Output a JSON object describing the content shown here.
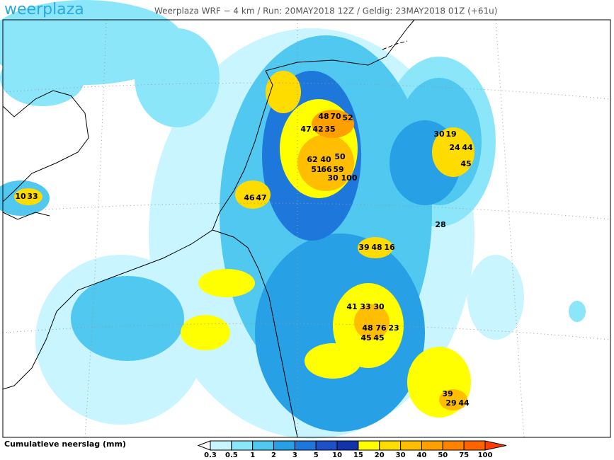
{
  "logo": "weerplaza",
  "header": "Weerplaza WRF − 4 km / Run: 20MAY2018 12Z / Geldig: 23MAY2018 01Z (+61u)",
  "legend": {
    "title": "Cumulatieve neerslag (mm)",
    "ticks": [
      0.3,
      0.5,
      1,
      2,
      3,
      5,
      10,
      15,
      20,
      30,
      40,
      50,
      75,
      100
    ],
    "colors": [
      "#ffffff",
      "#c8f5ff",
      "#8ce6fa",
      "#50c8f0",
      "#28a0e6",
      "#1e78dc",
      "#1e50c8",
      "#1432aa",
      "#ffff00",
      "#ffdc00",
      "#ffbe00",
      "#ffa000",
      "#ff8200",
      "#ff6400",
      "#ff3c00"
    ]
  },
  "map_labels": [
    66,
    59,
    62,
    40,
    50,
    48,
    70,
    52,
    47,
    42,
    35,
    51,
    30,
    100,
    46,
    47,
    39,
    48,
    16,
    41,
    33,
    30,
    48,
    76,
    23,
    45,
    45,
    44,
    24,
    45,
    30,
    19,
    29,
    44,
    39,
    33,
    10,
    28
  ]
}
